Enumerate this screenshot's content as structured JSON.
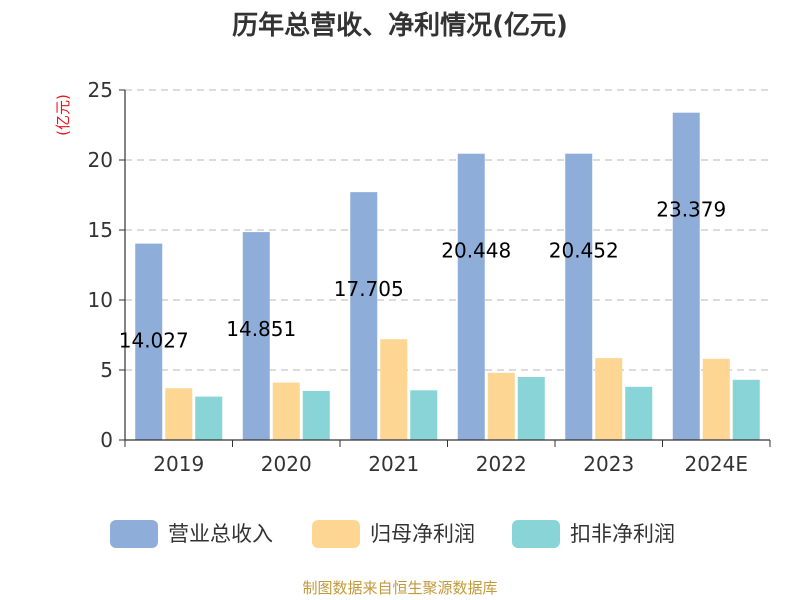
{
  "chart_data": {
    "type": "bar",
    "title": "历年总营收、净利情况(亿元)",
    "ylabel": "(亿元)",
    "xlabel": "",
    "ylim": [
      0,
      25
    ],
    "yticks": [
      0,
      5,
      10,
      15,
      20,
      25
    ],
    "categories": [
      "2019",
      "2020",
      "2021",
      "2022",
      "2023",
      "2024E"
    ],
    "series": [
      {
        "name": "营业总收入",
        "color": "#8eadd9",
        "values": [
          14.027,
          14.851,
          17.705,
          20.448,
          20.452,
          23.379
        ],
        "labels": [
          "14.027",
          "14.851",
          "17.705",
          "20.448",
          "20.452",
          "23.379"
        ]
      },
      {
        "name": "归母净利润",
        "color": "#fdd694",
        "values": [
          3.7,
          4.1,
          7.2,
          4.8,
          5.85,
          5.8
        ]
      },
      {
        "name": "扣非净利润",
        "color": "#88d4d6",
        "values": [
          3.1,
          3.5,
          3.55,
          4.5,
          3.8,
          4.3
        ]
      }
    ],
    "grid": true,
    "legend_position": "bottom",
    "source": "制图数据来自恒生聚源数据库"
  }
}
